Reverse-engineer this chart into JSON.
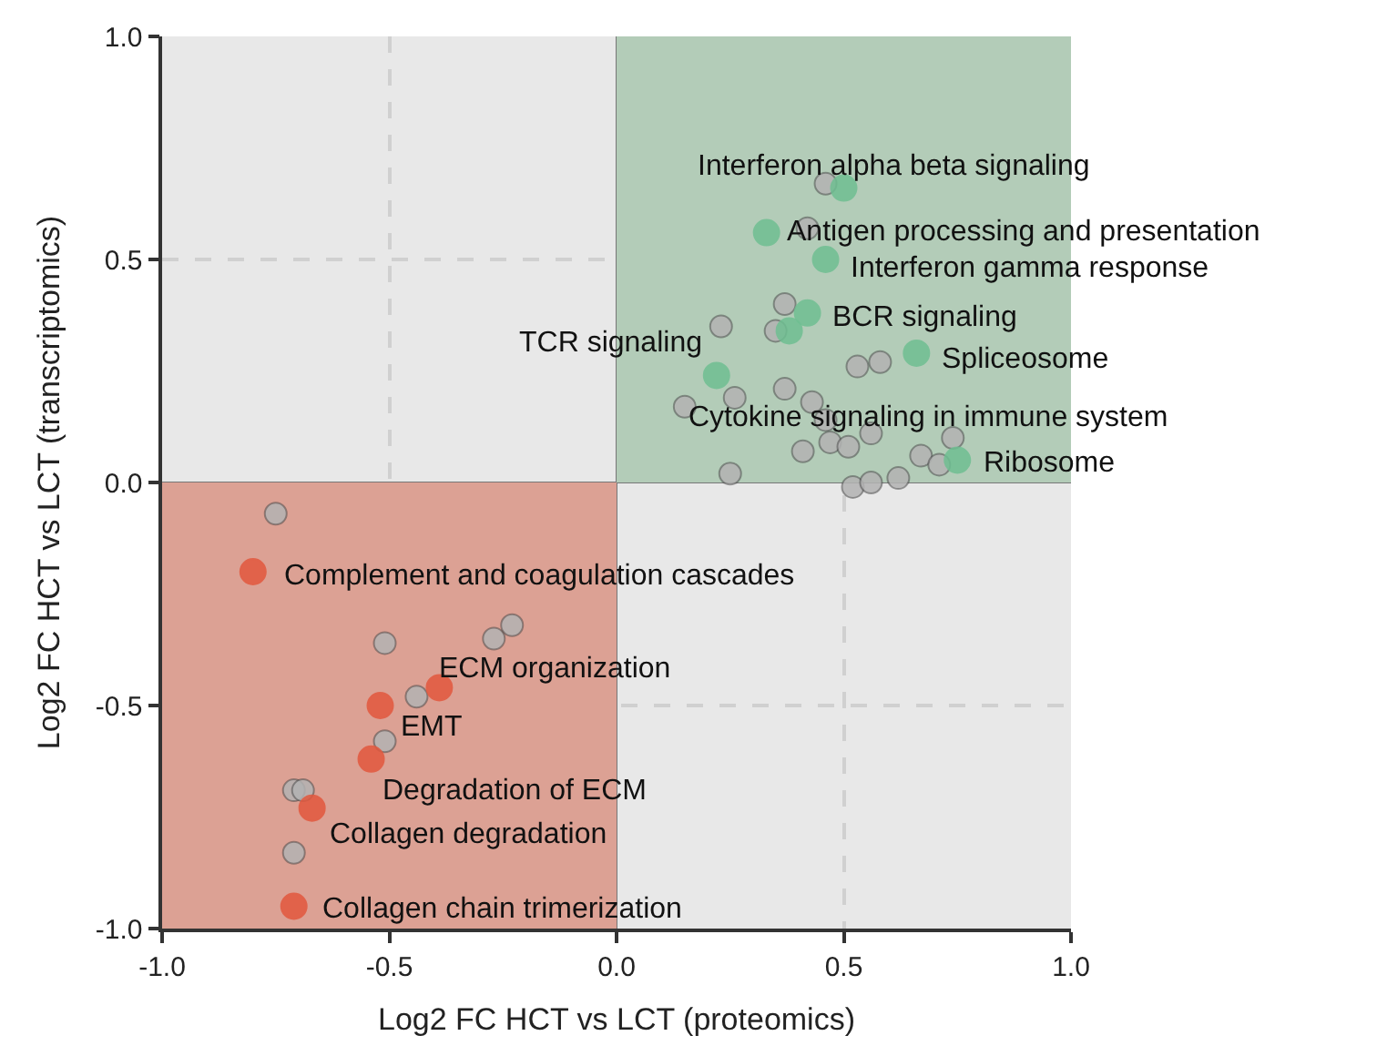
{
  "chart_data": {
    "type": "scatter",
    "xlabel": "Log2 FC HCT vs LCT (proteomics)",
    "ylabel": "Log2 FC HCT vs LCT (transcriptomics)",
    "xlim": [
      -1,
      1
    ],
    "ylim": [
      -1,
      1
    ],
    "xticks": [
      {
        "value": -1,
        "label": "-1.0"
      },
      -0.5,
      {
        "value": 0,
        "label": "0.0"
      },
      0.5,
      {
        "value": 1,
        "label": "1.0"
      }
    ],
    "yticks": [
      {
        "value": -1,
        "label": "-1.0"
      },
      -0.5,
      {
        "value": 0,
        "label": "0.0"
      },
      0.5,
      {
        "value": 1,
        "label": "1.0"
      }
    ],
    "grid": true,
    "marker": "circle",
    "series": [
      {
        "type": "area",
        "marker": "none",
        "color": "#b3ccb8",
        "x": [
          0,
          1
        ],
        "values": [
          1,
          1
        ]
      },
      {
        "type": "area",
        "marker": "none",
        "color": "#dca194",
        "x": [
          -1,
          0
        ],
        "values": [
          -1,
          -1
        ]
      },
      {
        "color": "#b3b3b3",
        "x": [
          -0.75,
          -0.51,
          -0.27,
          -0.23,
          -0.44,
          -0.51,
          -0.71,
          -0.69,
          -0.71,
          0.46,
          0.42,
          0.37,
          0.23,
          0.35,
          0.53,
          0.58,
          0.26,
          0.37,
          0.15,
          0.43,
          0.46,
          0.47,
          0.51,
          0.56,
          0.41,
          0.74,
          0.67,
          0.71,
          0.25,
          0.52,
          0.56,
          0.62
        ],
        "values": [
          -0.07,
          -0.36,
          -0.35,
          -0.32,
          -0.48,
          -0.58,
          -0.69,
          -0.69,
          -0.83,
          0.67,
          0.57,
          0.4,
          0.35,
          0.34,
          0.26,
          0.27,
          0.19,
          0.21,
          0.17,
          0.18,
          0.14,
          0.09,
          0.08,
          0.11,
          0.07,
          0.1,
          0.06,
          0.04,
          0.02,
          -0.01,
          0.0,
          0.01
        ]
      },
      {
        "color": "#6fbf92",
        "x": [
          0.5,
          0.33,
          0.46,
          0.42,
          0.38,
          0.22,
          0.66,
          0.75
        ],
        "values": [
          0.66,
          0.56,
          0.5,
          0.38,
          0.34,
          0.24,
          0.29,
          0.05
        ]
      },
      {
        "color": "#e2583e",
        "x": [
          -0.8,
          -0.39,
          -0.52,
          -0.54,
          -0.67,
          -0.71
        ],
        "values": [
          -0.2,
          -0.46,
          -0.5,
          -0.62,
          -0.73,
          -0.95
        ]
      }
    ],
    "annotations": [
      {
        "text": "Interferon alpha beta signaling",
        "x": 0.5,
        "y": 0.66
      },
      {
        "text": "Antigen processing and presentation",
        "x": 0.33,
        "y": 0.56
      },
      {
        "text": "Interferon gamma response",
        "x": 0.46,
        "y": 0.5
      },
      {
        "text": "BCR signaling",
        "x": 0.42,
        "y": 0.38
      },
      {
        "text": "Cytokine signaling in immune system",
        "x": 0.38,
        "y": 0.34
      },
      {
        "text": "TCR signaling",
        "x": 0.22,
        "y": 0.24
      },
      {
        "text": "Spliceosome",
        "x": 0.66,
        "y": 0.29
      },
      {
        "text": "Ribosome",
        "x": 0.75,
        "y": 0.05
      },
      {
        "text": "Complement and coagulation cascades",
        "x": -0.8,
        "y": -0.2
      },
      {
        "text": "ECM organization",
        "x": -0.39,
        "y": -0.46
      },
      {
        "text": "EMT",
        "x": -0.52,
        "y": -0.5
      },
      {
        "text": "Degradation of ECM",
        "x": -0.54,
        "y": -0.62
      },
      {
        "text": "Collagen degradation",
        "x": -0.67,
        "y": -0.73
      },
      {
        "text": "Collagen chain trimerization",
        "x": -0.71,
        "y": -0.95
      }
    ]
  }
}
